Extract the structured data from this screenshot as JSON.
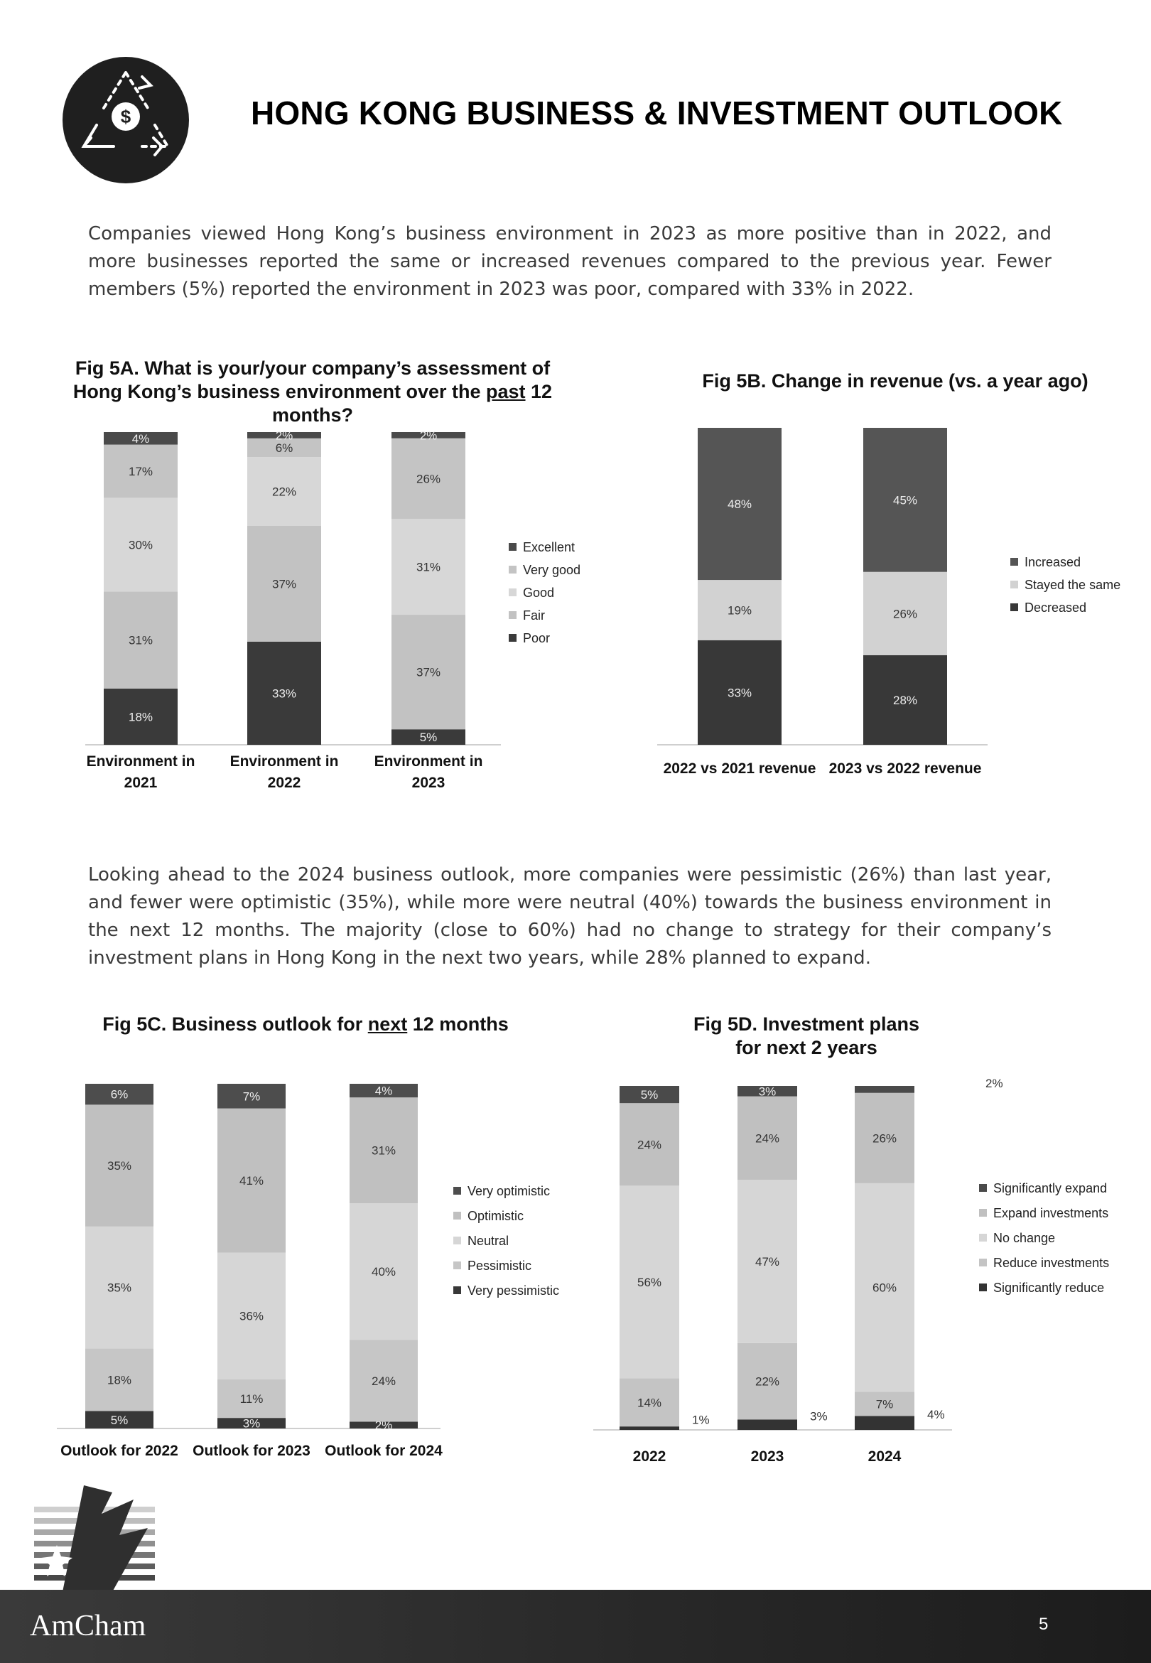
{
  "header": {
    "title": "HONG KONG BUSINESS & INVESTMENT OUTLOOK",
    "logo_icon": "dollar-cycle-icon"
  },
  "paragraphs": {
    "p1": "Companies viewed Hong Kong’s business environment in 2023 as more positive than in 2022, and more businesses reported the same or increased revenues compared to the previous year. Fewer members (5%) reported the environment in 2023 was poor, compared with 33% in 2022.",
    "p2": "Looking ahead to the 2024 business outlook, more companies were pessimistic (26%) than last year, and fewer were optimistic (35%), while more were neutral (40%) towards the business environment in the next 12 months. The majority (close to 60%) had no change to strategy for their company’s investment plans in Hong Kong in the next two years, while 28% planned to expand."
  },
  "figures": {
    "fig5a_title_pre": "Fig 5A. What is your/your company’s assessment of Hong Kong’s business environment over the ",
    "fig5a_title_underline": "past",
    "fig5a_title_post": " 12 months?",
    "fig5b_title": "Fig 5B. Change in revenue (vs. a year ago)",
    "fig5c_title_pre": "Fig 5C. Business outlook for ",
    "fig5c_title_underline": "next",
    "fig5c_title_post": " 12 months",
    "fig5d_title_line1": "Fig 5D. Investment plans",
    "fig5d_title_line2": "for next 2 years"
  },
  "chart_data": [
    {
      "id": "fig5a",
      "type": "bar",
      "stacked": true,
      "categories": [
        "Environment in 2021",
        "Environment in 2022",
        "Environment in 2023"
      ],
      "series": [
        {
          "name": "Poor",
          "values": [
            18,
            33,
            5
          ],
          "labels": [
            "18%",
            "33%",
            "5%"
          ],
          "color": "#3a3a3a"
        },
        {
          "name": "Fair",
          "values": [
            31,
            37,
            37
          ],
          "labels": [
            "31%",
            "37%",
            "37%"
          ],
          "color": "#c2c2c2"
        },
        {
          "name": "Good",
          "values": [
            30,
            22,
            31
          ],
          "labels": [
            "30%",
            "22%",
            "31%"
          ],
          "color": "#d7d7d7"
        },
        {
          "name": "Very good",
          "values": [
            17,
            6,
            26
          ],
          "labels": [
            "17%",
            "6%",
            "26%"
          ],
          "color": "#c4c4c4"
        },
        {
          "name": "Excellent",
          "values": [
            4,
            2,
            2
          ],
          "labels": [
            "4%",
            "2%",
            "2%"
          ],
          "color": "#4a4a4a"
        }
      ],
      "legend_order": [
        "Excellent",
        "Very good",
        "Good",
        "Fair",
        "Poor"
      ],
      "legend_position": "right"
    },
    {
      "id": "fig5b",
      "type": "bar",
      "stacked": true,
      "categories": [
        "2022 vs 2021 revenue",
        "2023 vs 2022 revenue"
      ],
      "series": [
        {
          "name": "Decreased",
          "values": [
            33,
            28
          ],
          "labels": [
            "33%",
            "28%"
          ],
          "color": "#383838"
        },
        {
          "name": "Stayed the same",
          "values": [
            19,
            26
          ],
          "labels": [
            "19%",
            "26%"
          ],
          "color": "#d2d2d2"
        },
        {
          "name": "Increased",
          "values": [
            48,
            45
          ],
          "labels": [
            "48%",
            "45%"
          ],
          "color": "#555555"
        }
      ],
      "legend_order": [
        "Increased",
        "Stayed the same",
        "Decreased"
      ],
      "legend_position": "right"
    },
    {
      "id": "fig5c",
      "type": "bar",
      "stacked": true,
      "categories": [
        "Outlook for 2022",
        "Outlook for 2023",
        "Outlook for 2024"
      ],
      "series": [
        {
          "name": "Very pessimistic",
          "values": [
            5,
            3,
            2
          ],
          "labels": [
            "5%",
            "3%",
            "2%"
          ],
          "color": "#383838"
        },
        {
          "name": "Pessimistic",
          "values": [
            18,
            11,
            24
          ],
          "labels": [
            "18%",
            "11%",
            "24%"
          ],
          "color": "#c6c6c6"
        },
        {
          "name": "Neutral",
          "values": [
            35,
            36,
            40
          ],
          "labels": [
            "35%",
            "36%",
            "40%"
          ],
          "color": "#d6d6d6"
        },
        {
          "name": "Optimistic",
          "values": [
            35,
            41,
            31
          ],
          "labels": [
            "35%",
            "41%",
            "31%"
          ],
          "color": "#c0c0c0"
        },
        {
          "name": "Very optimistic",
          "values": [
            6,
            7,
            4
          ],
          "labels": [
            "6%",
            "7%",
            "4%"
          ],
          "color": "#4d4d4d"
        }
      ],
      "legend_order": [
        "Very optimistic",
        "Optimistic",
        "Neutral",
        "Pessimistic",
        "Very pessimistic"
      ],
      "legend_position": "right"
    },
    {
      "id": "fig5d",
      "type": "bar",
      "stacked": true,
      "categories": [
        "2022",
        "2023",
        "2024"
      ],
      "series": [
        {
          "name": "Significantly reduce",
          "values": [
            1,
            3,
            4
          ],
          "labels": [
            "1%",
            "3%",
            "4%"
          ],
          "color": "#333333"
        },
        {
          "name": "Reduce investments",
          "values": [
            14,
            22,
            7
          ],
          "labels": [
            "14%",
            "22%",
            "7%"
          ],
          "color": "#c4c4c4"
        },
        {
          "name": "No change",
          "values": [
            56,
            47,
            60
          ],
          "labels": [
            "56%",
            "47%",
            "60%"
          ],
          "color": "#d6d6d6"
        },
        {
          "name": "Expand investments",
          "values": [
            24,
            24,
            26
          ],
          "labels": [
            "24%",
            "24%",
            "26%"
          ],
          "color": "#c0c0c0"
        },
        {
          "name": "Significantly expand",
          "values": [
            5,
            3,
            2
          ],
          "labels": [
            "5%",
            "3%",
            "2%"
          ],
          "color": "#4a4a4a"
        }
      ],
      "legend_order": [
        "Significantly expand",
        "Expand investments",
        "No change",
        "Reduce investments",
        "Significantly reduce"
      ],
      "legend_position": "right"
    }
  ],
  "footer": {
    "brand": "AmCham",
    "page_number": "5"
  }
}
